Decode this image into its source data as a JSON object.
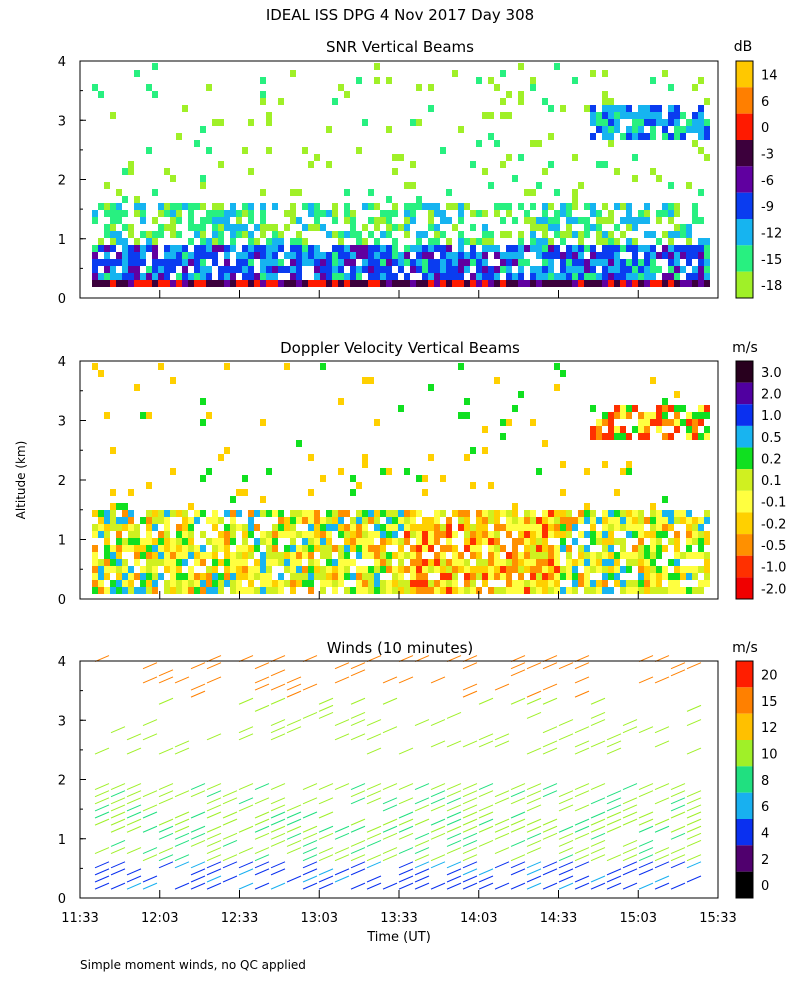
{
  "figure_title": "IDEAL ISS DPG    4 Nov 2017 Day 308",
  "footnote": "Simple moment winds, no QC applied",
  "ylabel_shared": "Altitude (km)",
  "chart_data": [
    {
      "type": "heatmap",
      "title": "SNR Vertical Beams",
      "xlabel": "",
      "ylabel": "Altitude (km)",
      "ylim": [
        0,
        4
      ],
      "yticks": [
        "0",
        "1",
        "2",
        "3",
        "4"
      ],
      "xtick_count": 9,
      "colorbar": {
        "unit": "dB",
        "labels": [
          "14",
          "6",
          "0",
          "-3",
          "-6",
          "-9",
          "-12",
          "-15",
          "-18"
        ],
        "colors": [
          "#ffc800",
          "#ff7f00",
          "#ff1a00",
          "#3c003c",
          "#6000a0",
          "#0a3cf0",
          "#16b4f0",
          "#28f080",
          "#a0f028"
        ]
      }
    },
    {
      "type": "heatmap",
      "title": "Doppler Velocity Vertical Beams",
      "xlabel": "",
      "ylabel": "Altitude (km)",
      "ylim": [
        0,
        4
      ],
      "yticks": [
        "0",
        "1",
        "2",
        "3",
        "4"
      ],
      "xtick_count": 9,
      "colorbar": {
        "unit": "m/s",
        "labels": [
          "3.0",
          "2.0",
          "1.0",
          "0.5",
          "0.2",
          "0.1",
          "-0.1",
          "-0.2",
          "-0.5",
          "-1.0",
          "-2.0"
        ],
        "colors": [
          "#28001e",
          "#5000a0",
          "#0a30f0",
          "#18b4f0",
          "#10e020",
          "#d0f020",
          "#ffff40",
          "#ffd000",
          "#ff9000",
          "#ff3000",
          "#f00000"
        ]
      }
    },
    {
      "type": "wind-barbs",
      "title": "Winds (10 minutes)",
      "xlabel": "Time (UT)",
      "ylabel": "Altitude (km)",
      "ylim": [
        0,
        4
      ],
      "yticks": [
        "0",
        "1",
        "2",
        "3",
        "4"
      ],
      "xticks": [
        "11:33",
        "12:03",
        "12:33",
        "13:03",
        "13:33",
        "14:03",
        "14:33",
        "15:03",
        "15:33"
      ],
      "colorbar": {
        "unit": "m/s",
        "labels": [
          "20",
          "15",
          "12",
          "10",
          "8",
          "6",
          "4",
          "2",
          "0"
        ],
        "colors": [
          "#ff1e00",
          "#ff8000",
          "#ffc000",
          "#a0f028",
          "#20e080",
          "#18b0f0",
          "#0a30f0",
          "#50006e",
          "#000000"
        ]
      }
    }
  ]
}
